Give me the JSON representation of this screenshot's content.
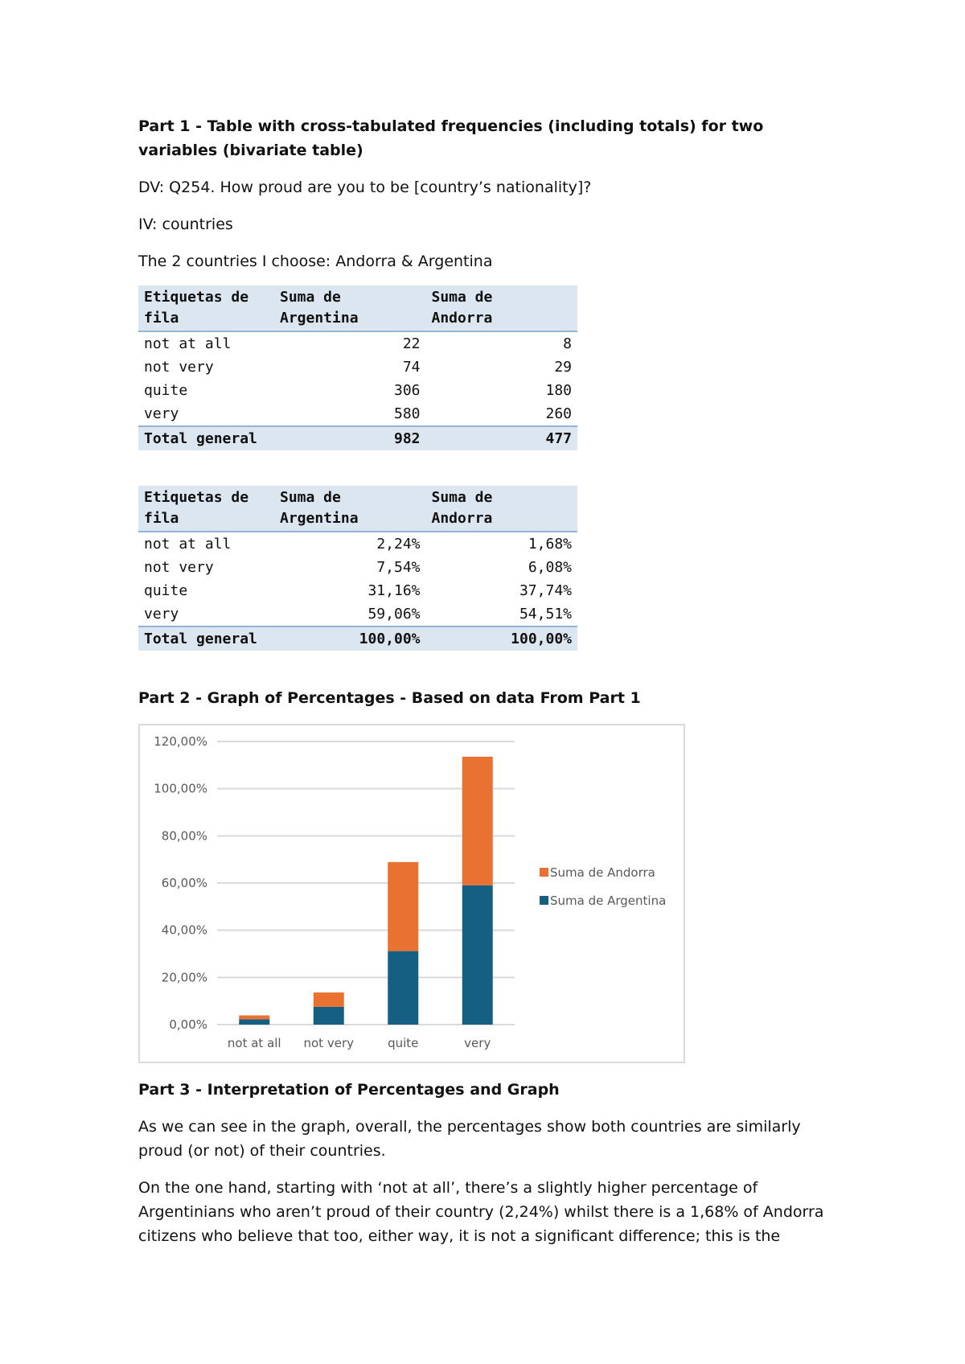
{
  "part1": {
    "heading": "Part 1 - Table with cross-tabulated frequencies (including totals) for two variables (bivariate table)",
    "dv": "DV: Q254. How proud are you to be [country’s nationality]?",
    "iv": "IV: countries",
    "countries": "The 2 countries I choose: Andorra & Argentina"
  },
  "table_counts": {
    "headers": [
      "Etiquetas de fila",
      "Suma de Argentina",
      "Suma de Andorra"
    ],
    "rows": [
      [
        "not at all",
        "22",
        "8"
      ],
      [
        "not very",
        "74",
        "29"
      ],
      [
        "quite",
        "306",
        "180"
      ],
      [
        "very",
        "580",
        "260"
      ]
    ],
    "total": [
      "Total general",
      "982",
      "477"
    ]
  },
  "table_pct": {
    "headers": [
      "Etiquetas de fila",
      "Suma de Argentina",
      "Suma de Andorra"
    ],
    "rows": [
      [
        "not at all",
        "2,24%",
        "1,68%"
      ],
      [
        "not very",
        "7,54%",
        "6,08%"
      ],
      [
        "quite",
        "31,16%",
        "37,74%"
      ],
      [
        "very",
        "59,06%",
        "54,51%"
      ]
    ],
    "total": [
      "Total general",
      "100,00%",
      "100,00%"
    ]
  },
  "part2": {
    "heading": "Part 2 - Graph of Percentages - Based on data From Part 1"
  },
  "chart_data": {
    "type": "bar",
    "stacked": true,
    "categories": [
      "not at all",
      "not very",
      "quite",
      "very"
    ],
    "series": [
      {
        "name": "Suma de Argentina",
        "values": [
          2.24,
          7.54,
          31.16,
          59.06
        ],
        "color": "#155f82"
      },
      {
        "name": "Suma de Andorra",
        "values": [
          1.68,
          6.08,
          37.74,
          54.51
        ],
        "color": "#e97132"
      }
    ],
    "ylim": [
      0,
      120
    ],
    "yticks": [
      "0,00%",
      "20,00%",
      "40,00%",
      "60,00%",
      "80,00%",
      "100,00%",
      "120,00%"
    ],
    "grid": true,
    "legend": "right"
  },
  "part3": {
    "heading": "Part 3 - Interpretation of Percentages and Graph",
    "para1": "As we can see in the graph, overall, the percentages show both countries are similarly proud (or not) of their countries.",
    "para2": "On the one hand, starting with ‘not at all’, there’s a slightly higher percentage of Argentinians who aren’t proud of their country (2,24%) whilst there is a 1,68% of Andorra citizens who believe that too, either way, it is not a significant difference; this is the"
  }
}
